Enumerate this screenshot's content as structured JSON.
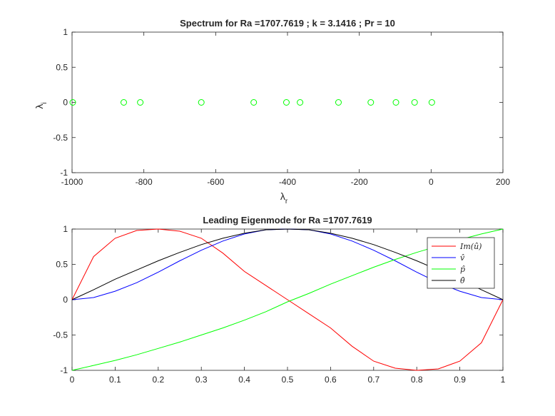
{
  "chart_data": [
    {
      "type": "scatter",
      "title": "Spectrum for Ra =1707.7619 ; k = 3.1416 ; Pr = 10",
      "xlabel": "λ",
      "xlabel_sub": "r",
      "ylabel": "λ",
      "ylabel_sub": "i",
      "xlim": [
        -1000,
        200
      ],
      "ylim": [
        -1,
        1
      ],
      "xticks": [
        -1000,
        -800,
        -600,
        -400,
        -200,
        0,
        200
      ],
      "xtick_labels": [
        "-1000",
        "-800",
        "-600",
        "-400",
        "-200",
        "0",
        "200"
      ],
      "yticks": [
        -1,
        -0.5,
        0,
        0.5,
        1
      ],
      "ytick_labels": [
        "-1",
        "-0.5",
        "0",
        "0.5",
        "1"
      ],
      "grid": false,
      "marker_color": "#00ff00",
      "series": [
        {
          "x": [
            -998,
            -856,
            -810,
            -640,
            -494,
            -403,
            -365,
            -258,
            -168,
            -98,
            -46,
            2
          ],
          "y": [
            0,
            0,
            0,
            0,
            0,
            0,
            0,
            0,
            0,
            0,
            0,
            0
          ]
        }
      ]
    },
    {
      "type": "line",
      "title": "Leading Eigenmode for Ra =1707.7619",
      "xlim": [
        0,
        1
      ],
      "ylim": [
        -1,
        1
      ],
      "xticks": [
        0,
        0.1,
        0.2,
        0.3,
        0.4,
        0.5,
        0.6,
        0.7,
        0.8,
        0.9,
        1
      ],
      "xtick_labels": [
        "0",
        "0.1",
        "0.2",
        "0.3",
        "0.4",
        "0.5",
        "0.6",
        "0.7",
        "0.8",
        "0.9",
        "1"
      ],
      "yticks": [
        -1,
        -0.5,
        0,
        0.5,
        1
      ],
      "ytick_labels": [
        "-1",
        "-0.5",
        "0",
        "0.5",
        "1"
      ],
      "grid": false,
      "legend_position": "top-right",
      "x": [
        0,
        0.05,
        0.1,
        0.15,
        0.2,
        0.25,
        0.3,
        0.35,
        0.4,
        0.45,
        0.5,
        0.55,
        0.6,
        0.65,
        0.7,
        0.75,
        0.8,
        0.85,
        0.9,
        0.95,
        1
      ],
      "series": [
        {
          "name": "Im(û)",
          "color": "#ff0000",
          "values": [
            0,
            0.61,
            0.87,
            0.98,
            1.0,
            0.97,
            0.87,
            0.66,
            0.4,
            0.2,
            0,
            -0.2,
            -0.4,
            -0.66,
            -0.87,
            -0.97,
            -1.0,
            -0.98,
            -0.87,
            -0.61,
            0
          ]
        },
        {
          "name": "v̂",
          "color": "#0000ff",
          "values": [
            0,
            0.03,
            0.12,
            0.24,
            0.39,
            0.55,
            0.7,
            0.83,
            0.93,
            0.99,
            1.0,
            0.99,
            0.93,
            0.83,
            0.7,
            0.55,
            0.39,
            0.24,
            0.12,
            0.03,
            0
          ]
        },
        {
          "name": "p̂",
          "color": "#00ff00",
          "values": [
            -1,
            -0.93,
            -0.86,
            -0.78,
            -0.69,
            -0.6,
            -0.5,
            -0.4,
            -0.29,
            -0.17,
            -0.03,
            0.09,
            0.22,
            0.34,
            0.46,
            0.57,
            0.67,
            0.76,
            0.85,
            0.93,
            1
          ]
        },
        {
          "name": "θ̂",
          "color": "#000000",
          "values": [
            0,
            0.14,
            0.29,
            0.42,
            0.55,
            0.67,
            0.78,
            0.87,
            0.94,
            0.99,
            1.0,
            0.99,
            0.94,
            0.87,
            0.78,
            0.67,
            0.55,
            0.42,
            0.29,
            0.14,
            0
          ]
        }
      ]
    }
  ]
}
